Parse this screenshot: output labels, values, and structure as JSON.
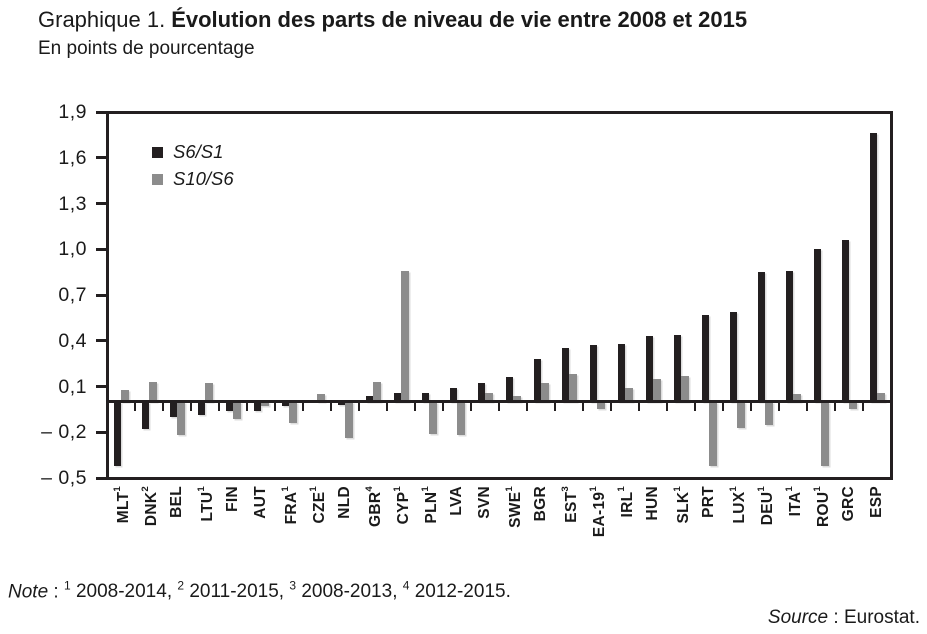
{
  "title": {
    "prefix": "Graphique 1.",
    "main": "Évolution des parts de niveau de vie entre 2008 et 2015"
  },
  "subtitle": "En points de pourcentage",
  "note": {
    "label": "Note",
    "items": [
      {
        "sup": "1",
        "text": "2008-2014"
      },
      {
        "sup": "2",
        "text": "2011-2015"
      },
      {
        "sup": "3",
        "text": "2008-2013"
      },
      {
        "sup": "4",
        "text": "2012-2015"
      }
    ]
  },
  "source": {
    "label": "Source",
    "text": "Eurostat."
  },
  "colors": {
    "dark": "#231f20",
    "gray": "#8c8c8c",
    "text": "#1a1a1a"
  },
  "chart_data": {
    "type": "bar",
    "title": "Graphique 1. Évolution des parts de niveau de vie entre 2008 et 2015",
    "unit_label": "En points de pourcentage",
    "grid": false,
    "legend_position": "top-left-inside",
    "ylim": [
      -0.5,
      1.9
    ],
    "ytick_step": 0.3,
    "ytick_labels": [
      "1,9",
      "1,6",
      "1,3",
      "1,0",
      "0,7",
      "0,4",
      "0,1",
      "– 0,2",
      "– 0,5"
    ],
    "categories": [
      {
        "code": "MLT",
        "sup": "1"
      },
      {
        "code": "DNK",
        "sup": "2"
      },
      {
        "code": "BEL",
        "sup": ""
      },
      {
        "code": "LTU",
        "sup": "1"
      },
      {
        "code": "FIN",
        "sup": ""
      },
      {
        "code": "AUT",
        "sup": ""
      },
      {
        "code": "FRA",
        "sup": "1"
      },
      {
        "code": "CZE",
        "sup": "1"
      },
      {
        "code": "NLD",
        "sup": ""
      },
      {
        "code": "GBR",
        "sup": "4"
      },
      {
        "code": "CYP",
        "sup": "1"
      },
      {
        "code": "PLN",
        "sup": "1"
      },
      {
        "code": "LVA",
        "sup": ""
      },
      {
        "code": "SVN",
        "sup": ""
      },
      {
        "code": "SWE",
        "sup": "1"
      },
      {
        "code": "BGR",
        "sup": ""
      },
      {
        "code": "EST",
        "sup": "3"
      },
      {
        "code": "EA-19",
        "sup": "1"
      },
      {
        "code": "IRL",
        "sup": "1"
      },
      {
        "code": "HUN",
        "sup": ""
      },
      {
        "code": "SLK",
        "sup": "1"
      },
      {
        "code": "PRT",
        "sup": ""
      },
      {
        "code": "LUX",
        "sup": "1"
      },
      {
        "code": "DEU",
        "sup": "1"
      },
      {
        "code": "ITA",
        "sup": "1"
      },
      {
        "code": "ROU",
        "sup": "1"
      },
      {
        "code": "GRC",
        "sup": ""
      },
      {
        "code": "ESP",
        "sup": ""
      }
    ],
    "series": [
      {
        "name": "S6/S1",
        "color": "#231f20",
        "values": [
          -0.42,
          -0.18,
          -0.1,
          -0.09,
          -0.06,
          -0.06,
          -0.03,
          0.0,
          -0.02,
          0.04,
          0.06,
          0.06,
          0.09,
          0.12,
          0.16,
          0.28,
          0.35,
          0.37,
          0.38,
          0.43,
          0.44,
          0.57,
          0.59,
          0.85,
          0.86,
          1.0,
          1.06,
          1.76
        ]
      },
      {
        "name": "S10/S6",
        "color": "#8c8c8c",
        "values": [
          0.08,
          0.13,
          -0.22,
          0.12,
          -0.11,
          -0.03,
          -0.14,
          0.05,
          -0.24,
          0.13,
          0.86,
          -0.21,
          -0.22,
          0.06,
          0.04,
          0.12,
          0.18,
          -0.05,
          0.09,
          0.15,
          0.17,
          -0.42,
          -0.17,
          -0.15,
          0.05,
          -0.42,
          -0.05,
          0.06
        ]
      }
    ]
  }
}
